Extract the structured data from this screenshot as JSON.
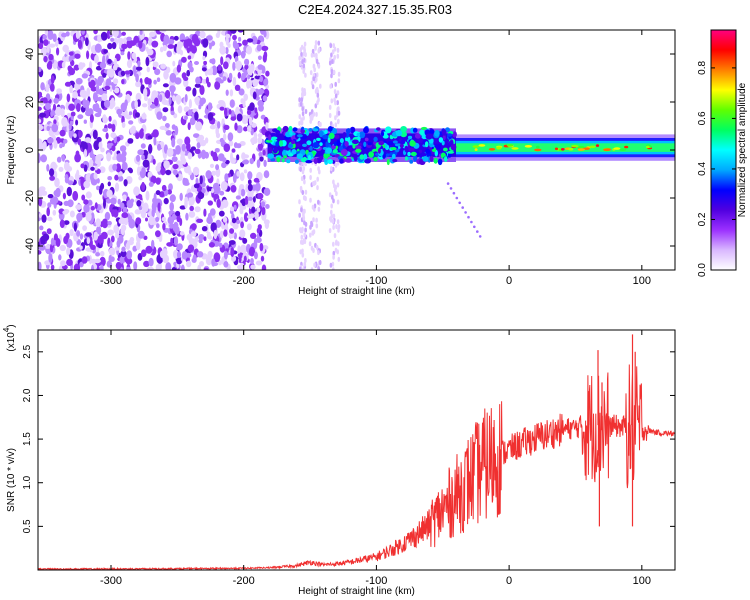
{
  "title": "C2E4.2024.327.15.35.R03",
  "chart_data": [
    {
      "type": "heatmap",
      "xlabel": "Height of straight line (km)",
      "ylabel": "Frequency (Hz)",
      "xlim": [
        -355,
        125
      ],
      "ylim": [
        -50,
        50
      ],
      "x_ticks": [
        -300,
        -200,
        -100,
        0,
        100
      ],
      "y_ticks": [
        -40,
        -20,
        0,
        20,
        40
      ],
      "colorbar": {
        "label": "Normalized spectral amplitude",
        "range": [
          0.0,
          0.95
        ],
        "ticks": [
          0.0,
          0.2,
          0.4,
          0.6,
          0.8
        ],
        "tick_labels": [
          "0.0",
          "0.2",
          "0.4",
          "0.6",
          "0.8"
        ],
        "colors": [
          "#ffffff",
          "#d9b8ff",
          "#9b30ff",
          "#5000e0",
          "#0000ff",
          "#00aaff",
          "#00ffff",
          "#00ff60",
          "#60ff00",
          "#ffff00",
          "#ff8000",
          "#ff0000",
          "#ff0080"
        ]
      },
      "regions": [
        {
          "x_range": [
            -355,
            -182
          ],
          "freq_range": [
            -50,
            50
          ],
          "amplitude": 0.15,
          "description_color": "#7a3cf0"
        },
        {
          "x_range": [
            -182,
            -40
          ],
          "freq_center": 2,
          "freq_halfwidth": 7,
          "amplitude": 0.45
        },
        {
          "x_range": [
            -40,
            125
          ],
          "freq_center": 1,
          "freq_halfwidth": 4,
          "amplitude": 0.55
        }
      ]
    },
    {
      "type": "line",
      "xlabel": "Height of straight line (km)",
      "ylabel": "SNR (10 * v/v)",
      "y_multiplier": "(x10^4)",
      "multiplier_base": "(x10",
      "multiplier_exp": "4",
      "multiplier_close": ")",
      "xlim": [
        -355,
        125
      ],
      "ylim": [
        0,
        27500
      ],
      "x_ticks": [
        -300,
        -200,
        -100,
        0,
        100
      ],
      "y_ticks": [
        5000,
        10000,
        15000,
        20000,
        25000
      ],
      "y_tick_labels": [
        "0.5",
        "1.0",
        "1.5",
        "2.0",
        "2.5"
      ],
      "color": "#f03030",
      "series": [
        {
          "x": [
            -355,
            -300,
            -250,
            -200,
            -180,
            -160,
            -150,
            -140,
            -130,
            -120,
            -110,
            -100,
            -90,
            -80,
            -70,
            -60,
            -50,
            -40,
            -30,
            -20,
            -10,
            0,
            10,
            20,
            30,
            40,
            50,
            55,
            60,
            65,
            70,
            75,
            80,
            85,
            90,
            93,
            95,
            100,
            105,
            110,
            115,
            125
          ],
          "y": [
            100,
            120,
            150,
            200,
            260,
            500,
            900,
            600,
            700,
            900,
            1200,
            1500,
            2200,
            3000,
            4000,
            5200,
            6800,
            8500,
            10200,
            11800,
            13000,
            13800,
            14500,
            15100,
            15600,
            16100,
            16300,
            16500,
            16600,
            16600,
            16600,
            16500,
            16500,
            16400,
            16400,
            16300,
            16200,
            16100,
            16000,
            15800,
            15700,
            15600
          ]
        }
      ],
      "spikes": [
        {
          "x": 60,
          "y": 20500
        },
        {
          "x": 67,
          "y": 25200
        },
        {
          "x": 70,
          "y": 21500
        },
        {
          "x": 93,
          "y": 27000
        },
        {
          "x": 95,
          "y": 25000
        },
        {
          "x": 68,
          "y": 5000
        },
        {
          "x": 93,
          "y": 5000
        }
      ]
    }
  ]
}
